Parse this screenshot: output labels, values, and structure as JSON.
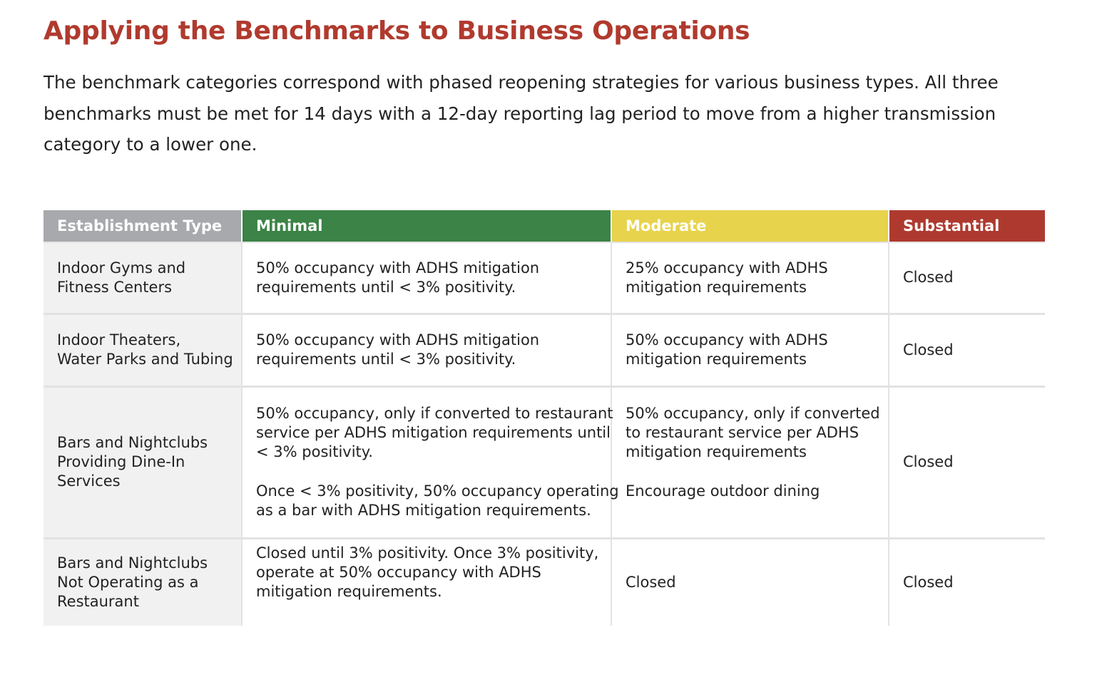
{
  "title": "Applying the Benchmarks to Business Operations",
  "intro": {
    "lines": [
      "The benchmark categories correspond with phased reopening strategies for various business types. All three",
      "benchmarks must be met for 14 days with a 12-day reporting lag period to move from a higher transmission",
      "category to a lower one."
    ]
  },
  "table": {
    "headers": {
      "type": "Establishment Type",
      "minimal": "Minimal",
      "moderate": "Moderate",
      "substantial": "Substantial"
    },
    "header_colors": {
      "type": "#a7a9ac",
      "minimal": "#3b8346",
      "moderate": "#e8d34c",
      "substantial": "#ae3a2f"
    },
    "rows": [
      {
        "type": [
          "Indoor Gyms and",
          "Fitness Centers"
        ],
        "minimal": [
          "50% occupancy with ADHS mitigation",
          "requirements until < 3% positivity."
        ],
        "moderate": [
          "25% occupancy with ADHS",
          "mitigation requirements"
        ],
        "substantial": "Closed"
      },
      {
        "type": [
          "Indoor Theaters,",
          "Water Parks and Tubing"
        ],
        "minimal": [
          "50% occupancy with ADHS mitigation",
          "requirements until < 3% positivity."
        ],
        "moderate": [
          "50% occupancy with ADHS",
          "mitigation requirements"
        ],
        "substantial": "Closed"
      },
      {
        "type": [
          "Bars and Nightclubs",
          "Providing Dine-In",
          "Services"
        ],
        "minimal_p1": [
          "50% occupancy, only if converted to restaurant",
          "service per ADHS mitigation requirements until",
          "< 3% positivity."
        ],
        "minimal_p2": [
          "Once < 3% positivity, 50% occupancy operating",
          "as a bar with ADHS mitigation requirements."
        ],
        "moderate_p1": [
          "50% occupancy, only if converted",
          "to restaurant service per ADHS",
          "mitigation requirements"
        ],
        "moderate_p2": [
          "Encourage outdoor dining"
        ],
        "substantial": "Closed"
      },
      {
        "type": [
          "Bars and Nightclubs",
          "Not Operating as a",
          "Restaurant"
        ],
        "minimal": [
          "Closed until 3% positivity. Once 3% positivity,",
          "operate at 50% occupancy with ADHS",
          "mitigation requirements."
        ],
        "moderate": "Closed",
        "substantial": "Closed"
      }
    ]
  }
}
